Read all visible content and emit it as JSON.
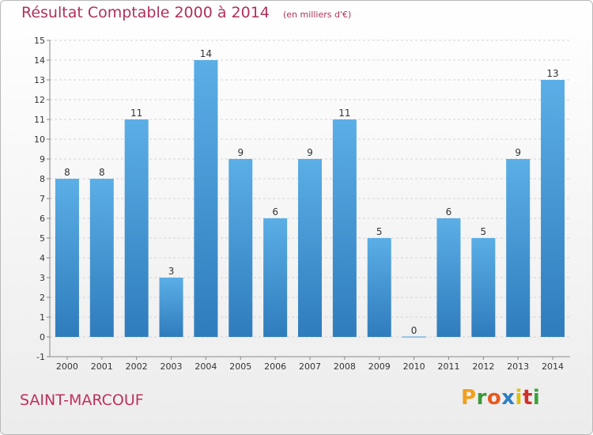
{
  "header": {
    "title": "Résultat Comptable 2000 à 2014",
    "unit": "(en milliers d'€)"
  },
  "footer": {
    "commune": "SAINT-MARCOUF",
    "brand": "Proxiti"
  },
  "colors": {
    "title": "#b0305a",
    "bar_light": "#5baee6",
    "bar_dark": "#2f7cbd",
    "grid": "#d4d4d4",
    "brand_letters": [
      "#f0a020",
      "#3a9a3a",
      "#e85a20",
      "#2c7fc2",
      "#e0c000",
      "#d0302a",
      "#3aa33a"
    ]
  },
  "chart_data": {
    "type": "bar",
    "title": "Résultat Comptable 2000 à 2014",
    "subtitle": "(en milliers d'€)",
    "xlabel": "",
    "ylabel": "",
    "categories": [
      "2000",
      "2001",
      "2002",
      "2003",
      "2004",
      "2005",
      "2006",
      "2007",
      "2008",
      "2009",
      "2010",
      "2011",
      "2012",
      "2013",
      "2014"
    ],
    "values": [
      8,
      8,
      11,
      3,
      14,
      9,
      6,
      9,
      11,
      5,
      0,
      6,
      5,
      9,
      13
    ],
    "ylim": [
      -1,
      15
    ],
    "yticks": [
      -1,
      0,
      1,
      2,
      3,
      4,
      5,
      6,
      7,
      8,
      9,
      10,
      11,
      12,
      13,
      14,
      15
    ],
    "grid": true,
    "legend": "none"
  }
}
